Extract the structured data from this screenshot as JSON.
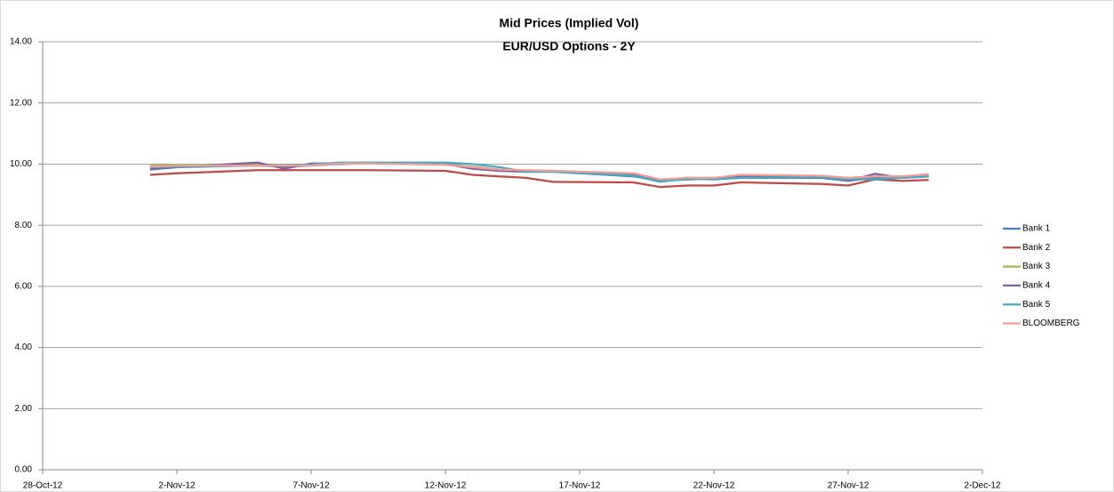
{
  "chart_data": {
    "type": "line",
    "title": "Mid Prices (Implied Vol)",
    "subtitle": "EUR/USD Options - 2Y",
    "x": [
      "1-Nov-12",
      "2-Nov-12",
      "5-Nov-12",
      "6-Nov-12",
      "7-Nov-12",
      "8-Nov-12",
      "9-Nov-12",
      "12-Nov-12",
      "13-Nov-12",
      "14-Nov-12",
      "15-Nov-12",
      "16-Nov-12",
      "19-Nov-12",
      "20-Nov-12",
      "21-Nov-12",
      "22-Nov-12",
      "23-Nov-12",
      "26-Nov-12",
      "27-Nov-12",
      "28-Nov-12",
      "29-Nov-12",
      "30-Nov-12"
    ],
    "series": [
      {
        "name": "Bank 1",
        "color": "#4a7ebb",
        "values": [
          9.85,
          9.9,
          9.95,
          9.92,
          9.95,
          10.0,
          10.02,
          10.02,
          9.9,
          9.8,
          9.75,
          9.75,
          9.6,
          9.45,
          9.5,
          9.52,
          9.55,
          9.55,
          9.45,
          9.55,
          9.55,
          9.6
        ]
      },
      {
        "name": "Bank 2",
        "color": "#be4b48",
        "values": [
          9.65,
          9.7,
          9.8,
          9.8,
          9.8,
          9.8,
          9.8,
          9.78,
          9.65,
          9.6,
          9.55,
          9.42,
          9.4,
          9.25,
          9.3,
          9.3,
          9.4,
          9.35,
          9.3,
          9.5,
          9.45,
          9.48
        ]
      },
      {
        "name": "Bank 3",
        "color": "#98b954",
        "values": [
          9.95,
          9.98,
          9.98,
          9.95,
          9.98,
          10.02,
          10.03,
          9.98,
          9.92,
          9.82,
          9.78,
          9.78,
          9.68,
          9.45,
          9.55,
          9.55,
          9.6,
          9.6,
          9.55,
          9.6,
          9.6,
          9.65
        ]
      },
      {
        "name": "Bank 4",
        "color": "#7d60a0",
        "values": [
          9.82,
          9.9,
          10.05,
          9.85,
          10.02,
          10.02,
          10.05,
          10.0,
          9.85,
          9.78,
          9.75,
          9.78,
          9.65,
          9.45,
          9.55,
          9.5,
          9.6,
          9.6,
          9.45,
          9.68,
          9.55,
          9.6
        ]
      },
      {
        "name": "Bank 5",
        "color": "#46aac5",
        "values": [
          9.9,
          9.92,
          9.95,
          9.95,
          9.98,
          10.05,
          10.05,
          10.05,
          10.0,
          9.9,
          9.75,
          9.75,
          9.62,
          9.42,
          9.52,
          9.5,
          9.55,
          9.58,
          9.5,
          9.5,
          9.55,
          9.6
        ]
      },
      {
        "name": "BLOOMBERG",
        "color": "#f59d95",
        "values": [
          9.92,
          9.95,
          9.95,
          9.95,
          9.95,
          10.02,
          10.02,
          9.98,
          9.9,
          9.82,
          9.8,
          9.78,
          9.7,
          9.5,
          9.55,
          9.55,
          9.65,
          9.62,
          9.55,
          9.6,
          9.6,
          9.67
        ]
      }
    ],
    "xlim": [
      "28-Oct-12",
      "2-Dec-12"
    ],
    "xticks": [
      "28-Oct-12",
      "2-Nov-12",
      "7-Nov-12",
      "12-Nov-12",
      "17-Nov-12",
      "22-Nov-12",
      "27-Nov-12",
      "2-Dec-12"
    ],
    "ylim": [
      0,
      14
    ],
    "yticks": [
      {
        "value": 0,
        "label": "0.00"
      },
      {
        "value": 2,
        "label": "2.00"
      },
      {
        "value": 4,
        "label": "4.00"
      },
      {
        "value": 6,
        "label": "6.00"
      },
      {
        "value": 8,
        "label": "8.00"
      },
      {
        "value": 10,
        "label": "10.00"
      },
      {
        "value": 12,
        "label": "12.00"
      },
      {
        "value": 14,
        "label": "14.00"
      }
    ],
    "grid": true,
    "legend": "right"
  }
}
